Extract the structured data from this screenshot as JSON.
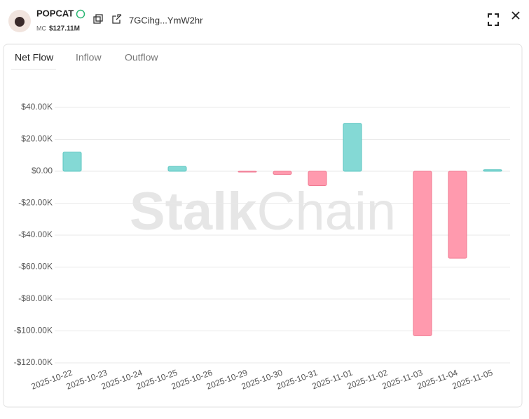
{
  "header": {
    "token": "POPCAT",
    "mc_label": "MC",
    "mc_value": "$127.11M",
    "address": "7GCihg...YmW2hr"
  },
  "tabs": [
    "Net Flow",
    "Inflow",
    "Outflow"
  ],
  "watermark": {
    "bold": "Stalk",
    "light": "Chain"
  },
  "chart_data": {
    "type": "bar",
    "categories": [
      "2025-10-22",
      "2025-10-23",
      "2025-10-24",
      "2025-10-25",
      "2025-10-26",
      "2025-10-29",
      "2025-10-30",
      "2025-10-31",
      "2025-11-01",
      "2025-11-02",
      "2025-11-03",
      "2025-11-04",
      "2025-11-05"
    ],
    "values": [
      12000,
      0,
      0,
      3000,
      0,
      -500,
      -2000,
      -9000,
      30000,
      0,
      -103000,
      -54500,
      1000
    ],
    "positive_color": "#84d9d5",
    "negative_color": "#ff9aae",
    "ylim": [
      -120000,
      40000
    ],
    "yticks": [
      {
        "value": 40000,
        "label": "$40.00K"
      },
      {
        "value": 20000,
        "label": "$20.00K"
      },
      {
        "value": 0,
        "label": "$0.00"
      },
      {
        "value": -20000,
        "label": "-$20.00K"
      },
      {
        "value": -40000,
        "label": "-$40.00K"
      },
      {
        "value": -60000,
        "label": "-$60.00K"
      },
      {
        "value": -80000,
        "label": "-$80.00K"
      },
      {
        "value": -100000,
        "label": "-$100.00K"
      },
      {
        "value": -120000,
        "label": "-$120.00K"
      }
    ],
    "grid": true
  }
}
